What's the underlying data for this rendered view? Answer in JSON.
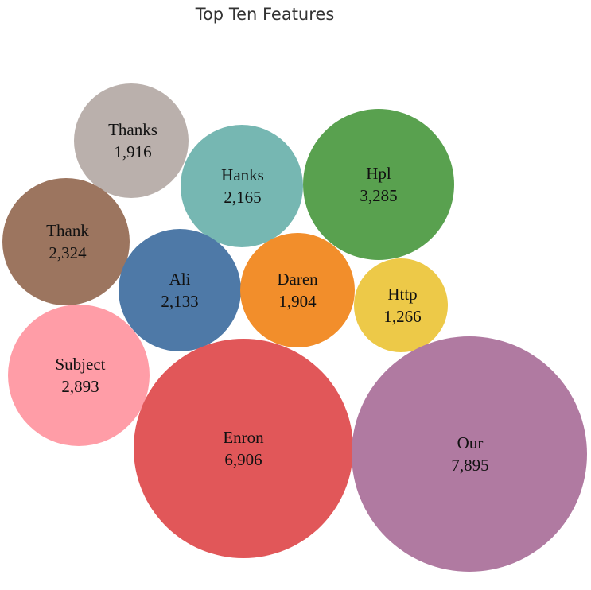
{
  "chart_data": {
    "type": "bubble",
    "title": "Top Ten Features",
    "bubbles": [
      {
        "label": "Thanks",
        "value": "1,916",
        "amount": 1916,
        "color": "#bab0ac"
      },
      {
        "label": "Hanks",
        "value": "2,165",
        "amount": 2165,
        "color": "#76b7b2"
      },
      {
        "label": "Hpl",
        "value": "3,285",
        "amount": 3285,
        "color": "#59a14f"
      },
      {
        "label": "Thank",
        "value": "2,324",
        "amount": 2324,
        "color": "#9c755f"
      },
      {
        "label": "Ali",
        "value": "2,133",
        "amount": 2133,
        "color": "#4e79a7"
      },
      {
        "label": "Daren",
        "value": "1,904",
        "amount": 1904,
        "color": "#f28e2b"
      },
      {
        "label": "Http",
        "value": "1,266",
        "amount": 1266,
        "color": "#edc948"
      },
      {
        "label": "Subject",
        "value": "2,893",
        "amount": 2893,
        "color": "#ff9da7"
      },
      {
        "label": "Enron",
        "value": "6,906",
        "amount": 6906,
        "color": "#e15759"
      },
      {
        "label": "Our",
        "value": "7,895",
        "amount": 7895,
        "color": "#b07aa1"
      }
    ]
  }
}
